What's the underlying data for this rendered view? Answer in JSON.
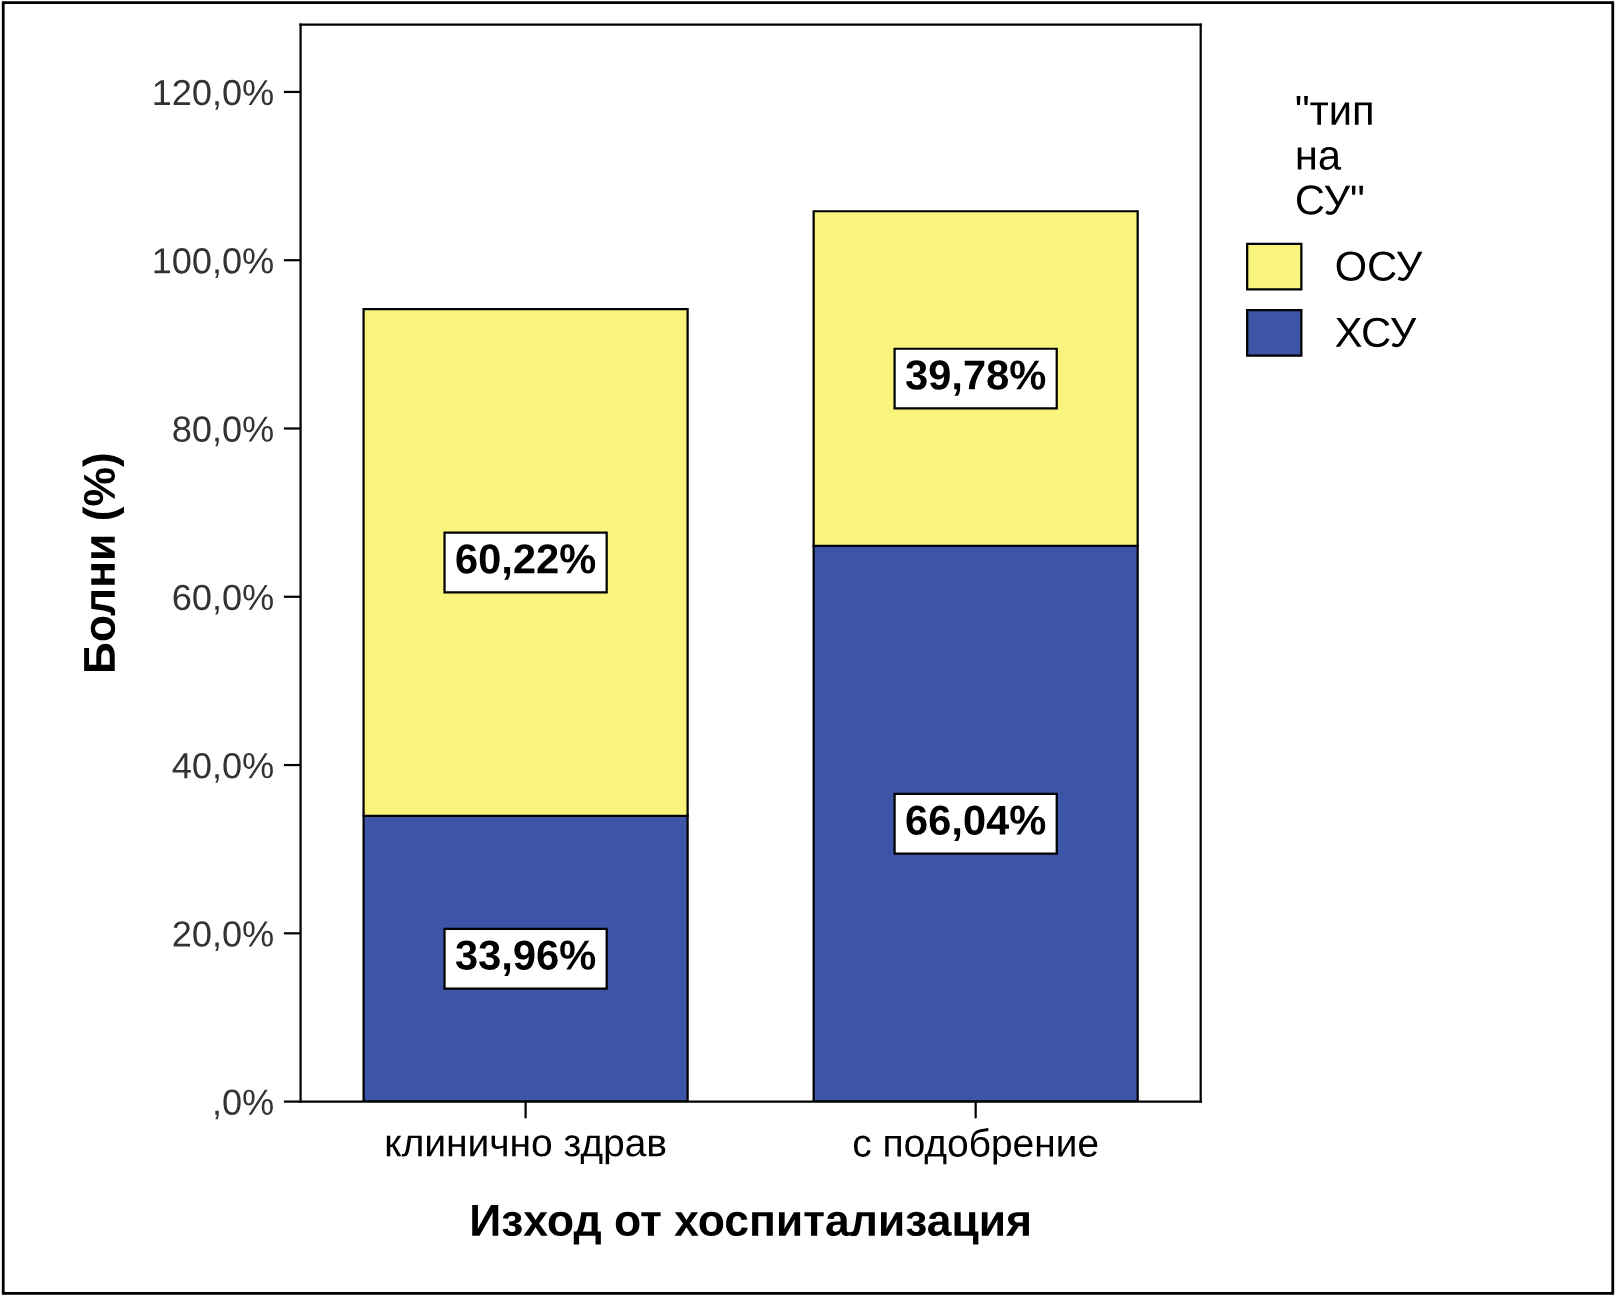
{
  "chart_data": {
    "type": "bar",
    "stacked": true,
    "xlabel": "Изход от хоспитализация",
    "ylabel": "Болни (%)",
    "legend_title": "\"тип\nна\nСУ\"",
    "categories": [
      "клинично здрав",
      "с подобрение"
    ],
    "series": [
      {
        "name": "ХСУ",
        "color": "#3d55a6",
        "values": [
          33.96,
          66.04
        ],
        "value_labels": [
          "33,96%",
          "66,04%"
        ]
      },
      {
        "name": "ОСУ",
        "color": "#f8f47c",
        "values": [
          60.22,
          39.78
        ],
        "value_labels": [
          "60,22%",
          "39,78%"
        ]
      }
    ],
    "ylim": [
      0,
      128
    ],
    "yticks": [
      {
        "value": 0,
        "label": ",0%"
      },
      {
        "value": 20,
        "label": "20,0%"
      },
      {
        "value": 40,
        "label": "40,0%"
      },
      {
        "value": 60,
        "label": "60,0%"
      },
      {
        "value": 80,
        "label": "80,0%"
      },
      {
        "value": 100,
        "label": "100,0%"
      },
      {
        "value": 120,
        "label": "120,0%"
      }
    ],
    "grid": false,
    "legend": "right"
  }
}
